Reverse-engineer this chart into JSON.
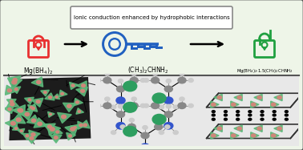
{
  "title_text": "Ionic conduction enhanced by hydrophobic interactions",
  "label1": "Mg(BH$_4$)$_2$",
  "label2": "(CH$_3$)$_2$CHNH$_2$",
  "label3": "Mg(BH$_4$)$_2$·1.5(CH$_3$)$_2$CHNH$_2$",
  "bg_top": "#eef5e8",
  "bg_bottom": "#f0f0f0",
  "border_color": "#555555",
  "lock1_color": "#e83030",
  "lock3_color": "#20a040",
  "key_color": "#2060c0",
  "fig_width": 3.78,
  "fig_height": 1.87,
  "dpi": 100
}
